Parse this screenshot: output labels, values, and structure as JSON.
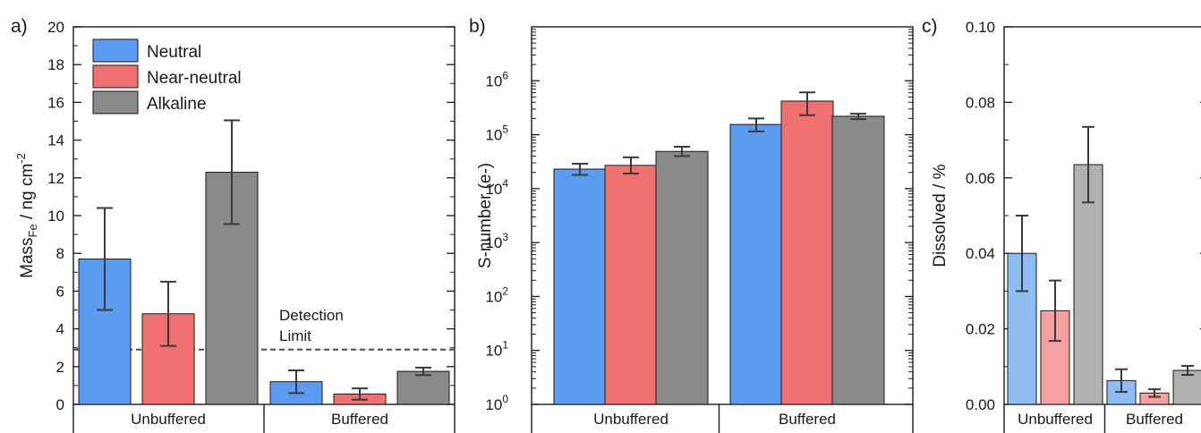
{
  "chart_data": [
    {
      "panel_label": "a)",
      "type": "bar",
      "ylabel": "Mass",
      "ylabel_sub": "Fe",
      "ylabel_unit": " / ng cm",
      "ylabel_sup": "-2",
      "ylim": [
        0,
        20
      ],
      "yticks": [
        0,
        2,
        4,
        6,
        8,
        10,
        12,
        14,
        16,
        18,
        20
      ],
      "ytick_labels": [
        "0",
        "2",
        "4",
        "6",
        "8",
        "10",
        "12",
        "14",
        "16",
        "18",
        "20"
      ],
      "categories": [
        "Unbuffered",
        "Buffered"
      ],
      "series": [
        {
          "name": "Neutral",
          "color": "#5b9bf0",
          "values": [
            7.7,
            1.2
          ],
          "errors": [
            2.7,
            0.6
          ]
        },
        {
          "name": "Near-neutral",
          "color": "#f07070",
          "values": [
            4.8,
            0.55
          ],
          "errors": [
            1.7,
            0.3
          ]
        },
        {
          "name": "Alkaline",
          "color": "#8a8a8a",
          "values": [
            12.3,
            1.75
          ],
          "errors": [
            2.75,
            0.2
          ]
        }
      ],
      "reference_line": {
        "value": 2.9,
        "label_line1": "Detection",
        "label_line2": "Limit"
      },
      "legend": "top-left"
    },
    {
      "panel_label": "b)",
      "type": "bar",
      "ylabel": "S-number (e-)",
      "yscale": "log",
      "ylim": [
        1,
        10000000
      ],
      "ytick_base": "10",
      "ytick_exponents": [
        "0",
        "1",
        "2",
        "3",
        "4",
        "5",
        "6"
      ],
      "categories": [
        "Unbuffered",
        "Buffered"
      ],
      "series": [
        {
          "name": "Neutral",
          "color": "#5b9bf0",
          "values": [
            23000,
            155000
          ],
          "err_low": [
            18000,
            115000
          ],
          "err_high": [
            29000,
            200000
          ]
        },
        {
          "name": "Near-neutral",
          "color": "#f07070",
          "values": [
            27000,
            420000
          ],
          "err_low": [
            19000,
            230000
          ],
          "err_high": [
            38000,
            610000
          ]
        },
        {
          "name": "Alkaline",
          "color": "#8a8a8a",
          "values": [
            49000,
            220000
          ],
          "err_low": [
            40000,
            195000
          ],
          "err_high": [
            60000,
            245000
          ]
        }
      ]
    },
    {
      "panel_label": "c)",
      "type": "bar",
      "ylabel": "Dissolved / %",
      "ylim": [
        0,
        0.1
      ],
      "yticks": [
        0,
        0.02,
        0.04,
        0.06,
        0.08,
        0.1
      ],
      "ytick_labels": [
        "0.00",
        "0.02",
        "0.04",
        "0.06",
        "0.08",
        "0.10"
      ],
      "categories": [
        "Unbuffered",
        "Buffered"
      ],
      "series": [
        {
          "name": "Neutral",
          "color": "#8fbcf3",
          "values": [
            0.04,
            0.0063
          ],
          "errors": [
            0.01,
            0.003
          ]
        },
        {
          "name": "Near-neutral",
          "color": "#f4a0a0",
          "values": [
            0.0248,
            0.003
          ],
          "errors": [
            0.008,
            0.001
          ]
        },
        {
          "name": "Alkaline",
          "color": "#b0b0b0",
          "values": [
            0.0635,
            0.009
          ],
          "errors": [
            0.01,
            0.0012
          ]
        }
      ]
    }
  ]
}
